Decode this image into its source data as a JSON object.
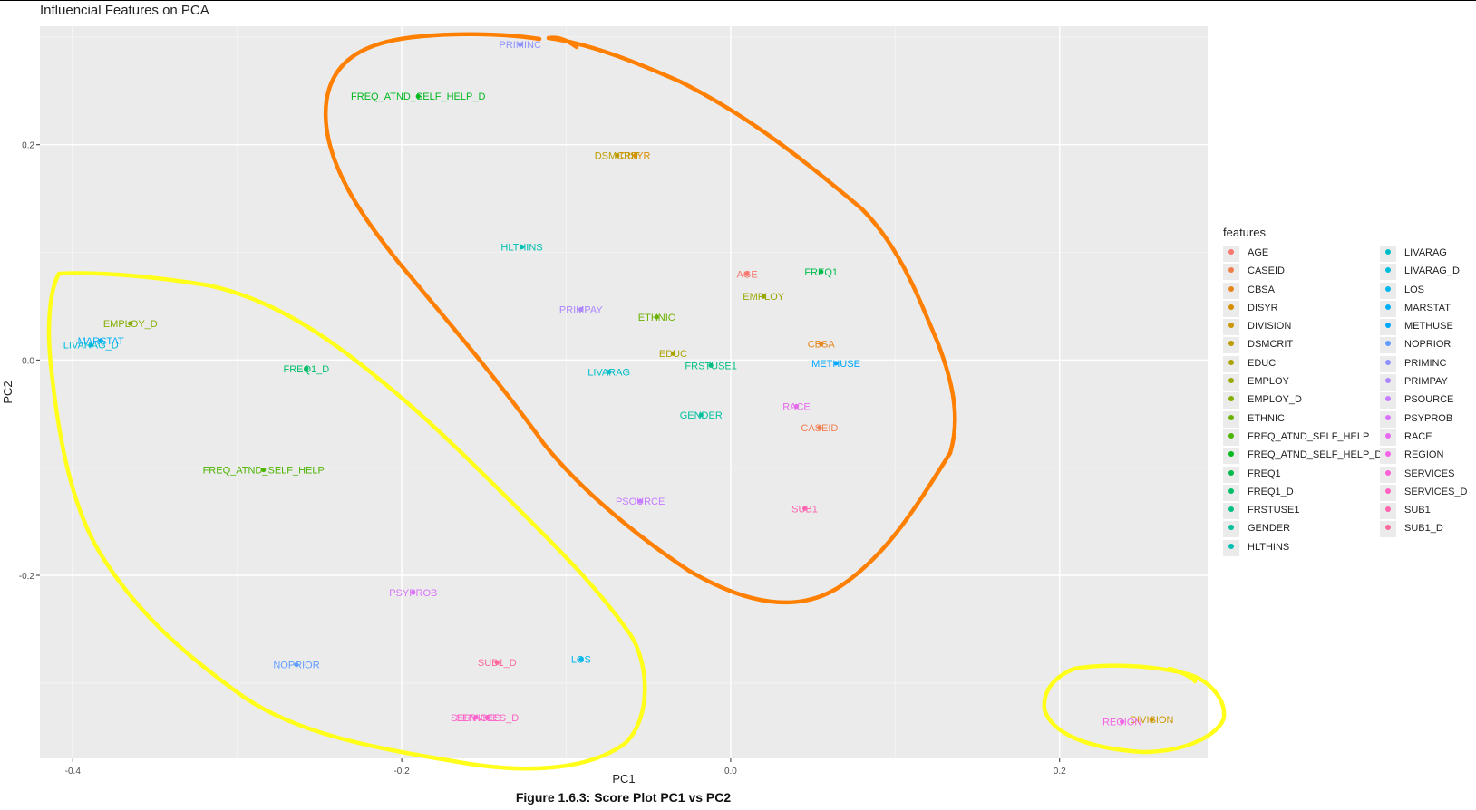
{
  "chart_data": {
    "type": "scatter",
    "title": "Influencial Features on PCA",
    "xlabel": "PC1",
    "ylabel": "PC2",
    "xlim": [
      -0.42,
      0.29
    ],
    "ylim": [
      -0.37,
      0.31
    ],
    "x_ticks": [
      -0.4,
      -0.2,
      0.0,
      0.2
    ],
    "x_tick_labels": [
      "-0.4",
      "-0.2",
      "0.0",
      "0.2"
    ],
    "y_ticks": [
      -0.2,
      0.0,
      0.2
    ],
    "y_tick_labels": [
      "-0.2",
      "0.0",
      "0.2"
    ],
    "grid": true,
    "legend_title": "features",
    "legend_position": "right",
    "points": [
      {
        "name": "AGE",
        "x": 0.01,
        "y": 0.08,
        "color": "#F8766D"
      },
      {
        "name": "CASEID",
        "x": 0.054,
        "y": -0.063,
        "color": "#F07E4D"
      },
      {
        "name": "CBSA",
        "x": 0.055,
        "y": 0.015,
        "color": "#E6861C"
      },
      {
        "name": "DISYR",
        "x": -0.058,
        "y": 0.19,
        "color": "#D98E00"
      },
      {
        "name": "DIVISION",
        "x": 0.256,
        "y": -0.334,
        "color": "#CC9600"
      },
      {
        "name": "DSMCRIT",
        "x": -0.069,
        "y": 0.19,
        "color": "#BC9C00"
      },
      {
        "name": "EDUC",
        "x": -0.035,
        "y": 0.006,
        "color": "#ABA300"
      },
      {
        "name": "EMPLOY",
        "x": 0.02,
        "y": 0.059,
        "color": "#99A800"
      },
      {
        "name": "EMPLOY_D",
        "x": -0.365,
        "y": 0.034,
        "color": "#84AD00"
      },
      {
        "name": "ETHNIC",
        "x": -0.045,
        "y": 0.04,
        "color": "#6BB100"
      },
      {
        "name": "FREQ_ATND_SELF_HELP",
        "x": -0.284,
        "y": -0.102,
        "color": "#4CB500"
      },
      {
        "name": "FREQ_ATND_SELF_HELP_D",
        "x": -0.19,
        "y": 0.245,
        "color": "#00B81F"
      },
      {
        "name": "FREQ1",
        "x": 0.055,
        "y": 0.082,
        "color": "#00BB4B"
      },
      {
        "name": "FREQ1_D",
        "x": -0.258,
        "y": -0.008,
        "color": "#00BD6A"
      },
      {
        "name": "FRSTUSE1",
        "x": -0.012,
        "y": -0.005,
        "color": "#00BF85"
      },
      {
        "name": "GENDER",
        "x": -0.018,
        "y": -0.051,
        "color": "#00C09D"
      },
      {
        "name": "HLTHINS",
        "x": -0.127,
        "y": 0.105,
        "color": "#00C0B3"
      },
      {
        "name": "LIVARAG",
        "x": -0.074,
        "y": -0.011,
        "color": "#00BEC7"
      },
      {
        "name": "LIVARAG_D",
        "x": -0.389,
        "y": 0.014,
        "color": "#00BBDA"
      },
      {
        "name": "LOS",
        "x": -0.091,
        "y": -0.278,
        "color": "#00B6EB"
      },
      {
        "name": "MARSTAT",
        "x": -0.383,
        "y": 0.018,
        "color": "#00B0F6"
      },
      {
        "name": "METHUSE",
        "x": 0.064,
        "y": -0.003,
        "color": "#00A8FF"
      },
      {
        "name": "NOPRIOR",
        "x": -0.264,
        "y": -0.283,
        "color": "#619CFF"
      },
      {
        "name": "PRIMINC",
        "x": -0.128,
        "y": 0.293,
        "color": "#8F91FF"
      },
      {
        "name": "PRIMPAY",
        "x": -0.091,
        "y": 0.047,
        "color": "#AE87FF"
      },
      {
        "name": "PSOURCE",
        "x": -0.055,
        "y": -0.131,
        "color": "#C77CFF"
      },
      {
        "name": "PSYPROB",
        "x": -0.193,
        "y": -0.216,
        "color": "#DA72FB"
      },
      {
        "name": "RACE",
        "x": 0.04,
        "y": -0.043,
        "color": "#E86AF0"
      },
      {
        "name": "REGION",
        "x": 0.238,
        "y": -0.336,
        "color": "#F365E6"
      },
      {
        "name": "SERVICES",
        "x": -0.155,
        "y": -0.332,
        "color": "#FC61D5"
      },
      {
        "name": "SERVICES_D",
        "x": -0.148,
        "y": -0.332,
        "color": "#FF61C3"
      },
      {
        "name": "SUB1",
        "x": 0.045,
        "y": -0.138,
        "color": "#FF64AF"
      },
      {
        "name": "SUB1_D",
        "x": -0.142,
        "y": -0.281,
        "color": "#FF6A98"
      }
    ],
    "annotations": [
      {
        "shape": "freehand-loop",
        "color": "#FF7F00",
        "description": "outline around central cluster"
      },
      {
        "shape": "freehand-loop",
        "color": "#FFFF00",
        "description": "outline around left cluster"
      },
      {
        "shape": "freehand-loop",
        "color": "#FFFF00",
        "description": "outline around REGION/DIVISION"
      }
    ]
  },
  "caption": "Figure 1.6.3: Score Plot PC1 vs PC2"
}
